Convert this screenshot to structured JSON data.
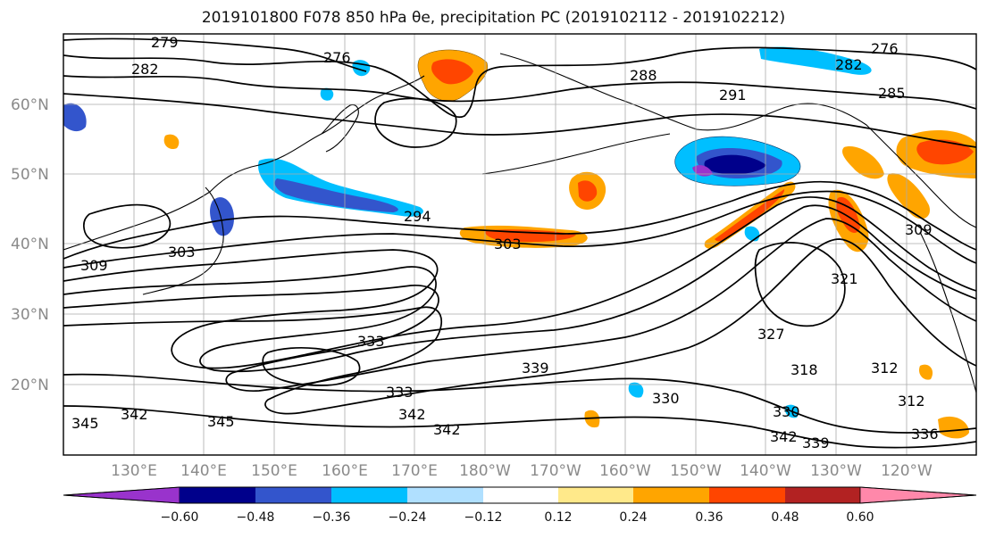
{
  "title": "2019101800 F078 850 hPa θe, precipitation PC (2019102112 - 2019102212)",
  "latitude_labels": [
    "60°N",
    "50°N",
    "40°N",
    "30°N",
    "20°N"
  ],
  "longitude_labels": [
    "130°E",
    "140°E",
    "150°E",
    "160°E",
    "170°E",
    "180°W",
    "170°W",
    "160°W",
    "150°W",
    "140°W",
    "130°W",
    "120°W"
  ],
  "colorbar": {
    "colors": [
      "#9933cc",
      "#00008b",
      "#3355cc",
      "#00bfff",
      "#b0e0ff",
      "#ffffff",
      "#ffe98a",
      "#ffa500",
      "#ff4500",
      "#b22222",
      "#ff88aa"
    ],
    "tick_labels": [
      "−0.60",
      "−0.48",
      "−0.36",
      "−0.24",
      "−0.12",
      "0.12",
      "0.24",
      "0.36",
      "0.48",
      "0.60"
    ]
  },
  "contour_labels": [
    "279",
    "282",
    "276",
    "288",
    "276",
    "282",
    "285",
    "291",
    "294",
    "303",
    "309",
    "303",
    "309",
    "321",
    "333",
    "339",
    "333",
    "330",
    "342",
    "342",
    "345",
    "345",
    "342",
    "318",
    "312",
    "312",
    "330",
    "336",
    "342",
    "339",
    "327"
  ]
}
